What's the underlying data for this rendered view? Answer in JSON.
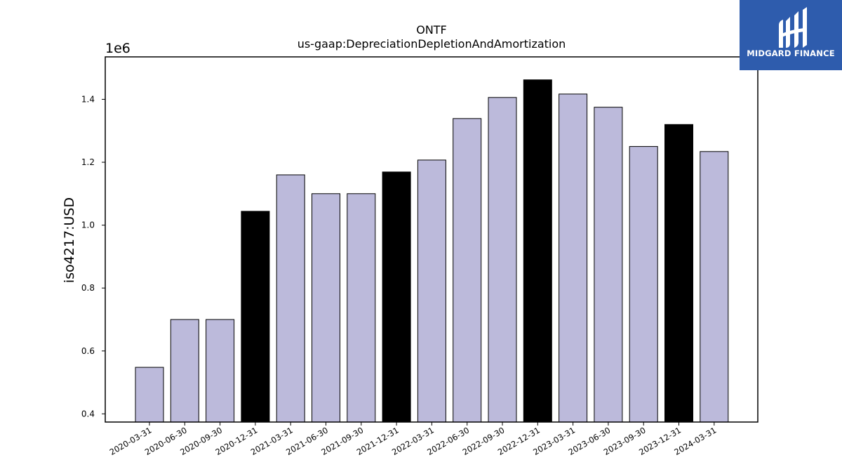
{
  "chart_data": {
    "type": "bar",
    "title": "ONTF",
    "subtitle": "us-gaap:DepreciationDepletionAndAmortization",
    "ylabel": "iso4217:USD",
    "xlabel": "",
    "offset_label": "1e6",
    "ylim": [
      0.374,
      1.535
    ],
    "yticks": [
      0.4,
      0.6,
      0.8,
      1.0,
      1.2,
      1.4
    ],
    "categories": [
      "2020-03-31",
      "2020-06-30",
      "2020-09-30",
      "2020-12-31",
      "2021-03-31",
      "2021-06-30",
      "2021-09-30",
      "2021-12-31",
      "2022-03-31",
      "2022-06-30",
      "2022-09-30",
      "2022-12-31",
      "2023-03-31",
      "2023-06-30",
      "2023-09-30",
      "2023-12-31",
      "2024-03-31"
    ],
    "values": [
      0.548,
      0.7,
      0.7,
      1.044,
      1.16,
      1.1,
      1.1,
      1.169,
      1.207,
      1.339,
      1.406,
      1.462,
      1.417,
      1.375,
      1.25,
      1.32,
      1.234
    ],
    "bar_colors": [
      "#bcbadb",
      "#bcbadb",
      "#bcbadb",
      "#000000",
      "#bcbadb",
      "#bcbadb",
      "#bcbadb",
      "#000000",
      "#bcbadb",
      "#bcbadb",
      "#bcbadb",
      "#000000",
      "#bcbadb",
      "#bcbadb",
      "#bcbadb",
      "#000000",
      "#bcbadb"
    ],
    "grid": false,
    "legend": "none"
  },
  "logo": {
    "text": "MIDGARD FINANCE",
    "background": "#2e5cad",
    "icon": "midgard-logo-icon"
  }
}
